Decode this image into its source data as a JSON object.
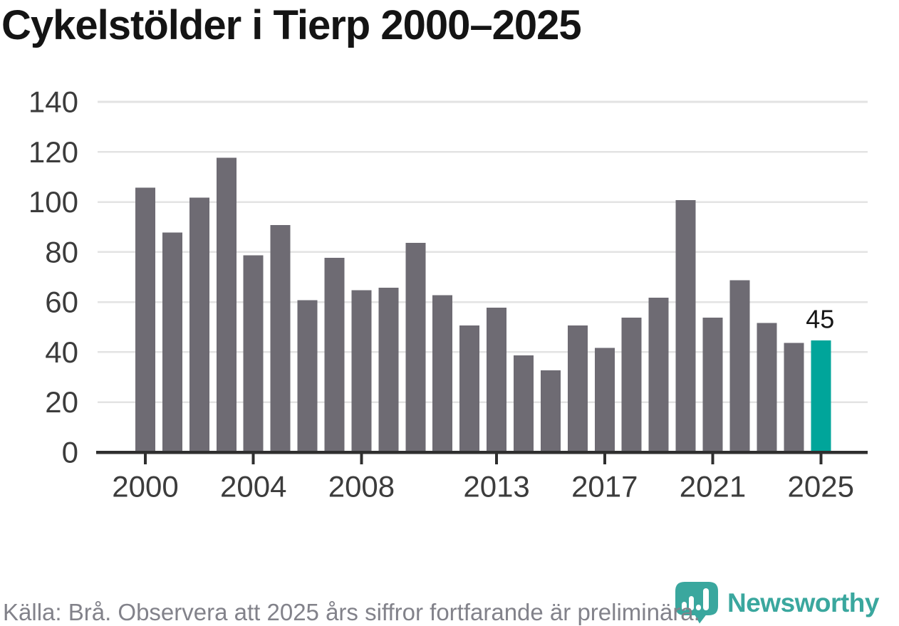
{
  "title": "Cykelstölder i Tierp 2000–2025",
  "footer": {
    "source_note": "Källa: Brå. Observera att 2025 års siffror fortfarande är preliminära."
  },
  "logo": {
    "brand_name": "Newsworthy",
    "icon": "newsworthy-bar-chart-bubble-icon",
    "color": "#3aa79e"
  },
  "colors": {
    "bar_gray": "#6e6b73",
    "bar_highlight_teal": "#00a59a",
    "gridline": "#e3e3e3",
    "axis_line": "#2f2f2f",
    "axis_label": "#3c3c3c",
    "title_text": "#141414",
    "source_text": "#82828a",
    "value_label": "#161616",
    "background": "#ffffff"
  },
  "chart_data": {
    "type": "bar",
    "title": "Cykelstölder i Tierp 2000–2025",
    "xlabel": "",
    "ylabel": "",
    "categories": [
      "2000",
      "2001",
      "2002",
      "2003",
      "2004",
      "2005",
      "2006",
      "2007",
      "2008",
      "2009",
      "2010",
      "2011",
      "2012",
      "2013",
      "2014",
      "2015",
      "2016",
      "2017",
      "2018",
      "2019",
      "2020",
      "2021",
      "2022",
      "2023",
      "2024",
      "2025"
    ],
    "values": [
      106,
      88,
      102,
      118,
      79,
      91,
      61,
      78,
      65,
      66,
      84,
      63,
      51,
      58,
      39,
      33,
      51,
      42,
      54,
      62,
      101,
      54,
      69,
      52,
      44,
      45
    ],
    "ylim": [
      0,
      140
    ],
    "yticks": [
      0,
      20,
      40,
      60,
      80,
      100,
      120,
      140
    ],
    "xtick_years": [
      "2000",
      "2004",
      "2008",
      "2013",
      "2017",
      "2021",
      "2025"
    ],
    "grid": true,
    "legend": "none",
    "highlight_category": "2025",
    "annotation": {
      "category": "2025",
      "label": "45"
    },
    "source": "Källa: Brå. Observera att 2025 års siffror fortfarande är preliminära."
  }
}
